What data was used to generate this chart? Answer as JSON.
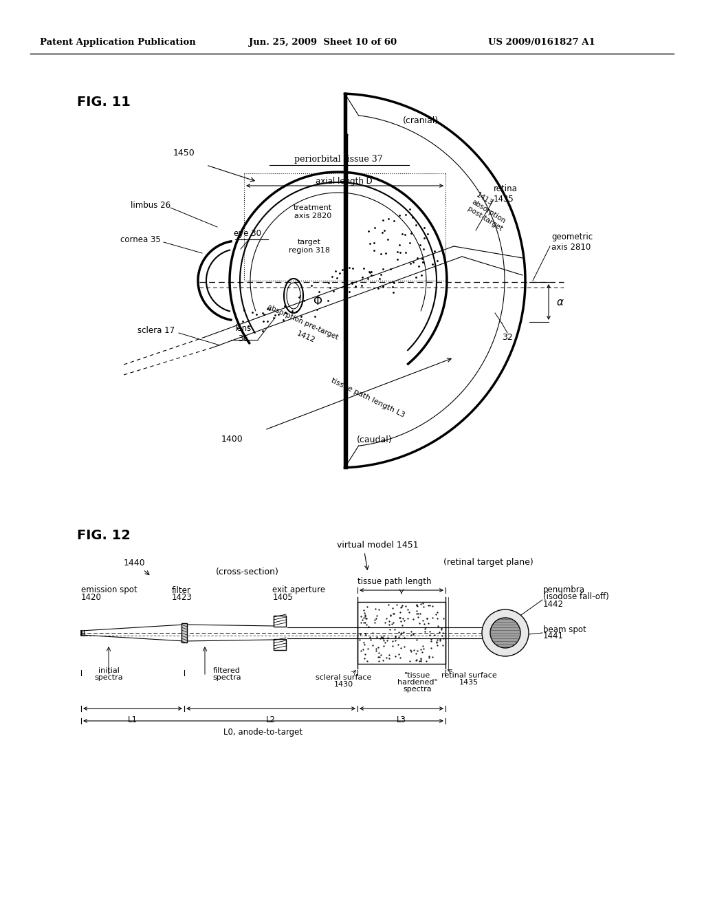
{
  "background_color": "#ffffff",
  "header_text": "Patent Application Publication",
  "header_date": "Jun. 25, 2009  Sheet 10 of 60",
  "header_patent": "US 2009/0161827 A1",
  "fig11_label": "FIG. 11",
  "fig12_label": "FIG. 12",
  "cranial_label": "(cranial)",
  "caudal_label": "(caudal)",
  "periorbital_label": "periorbital tissue 37",
  "axial_length_label": "axial length D",
  "limbus_label": "limbus 26",
  "cornea_label": "cornea 35",
  "eye_label": "eye 30",
  "treatment_axis_label": "treatment\naxis 2820",
  "target_region_label": "target\nregion 318",
  "retina_label": "retina\n1435",
  "absorption_post_label": "1413\nabsorption\npost-target",
  "geometric_axis_label": "geometric\naxis 2810",
  "lens_label": "lens\n36",
  "phi_label": "Φ",
  "absorption_pre_label": "absorption pre-target",
  "absorption_pre_num": "1412",
  "sclera_label": "sclera 17",
  "tissue_path_label": "tissue path length L3",
  "label_1400": "1400",
  "label_32": "32",
  "label_1450": "1450",
  "alpha_label": "α",
  "cross_section_label": "(cross-section)",
  "retinal_target_label": "(retinal target plane)",
  "virtual_model_label": "virtual model 1451",
  "label_1440": "1440",
  "emission_spot_label": "emission spot\n1420",
  "filter_label": "filter\n1423",
  "tissue_path_length_label": "tissue path length",
  "exit_aperture_label": "exit aperture\n1405",
  "penumbra_label": "penumbra\n(isodose fall-off)\n1442",
  "beam_spot_label": "beam spot\n1441",
  "initial_spectra_label": "initial\nspectra",
  "filtered_spectra_label": "filtered\nspectra",
  "tissue_hardened_label": "\"tissue\nhardened\"\nspectra",
  "scleral_surface_label": "scleral surface\n1430",
  "retinal_surface_label": "retinal surface\n1435",
  "L1_label": "L1",
  "L2_label": "L2",
  "L3_label": "L3",
  "L0_label": "L0, anode-to-target"
}
